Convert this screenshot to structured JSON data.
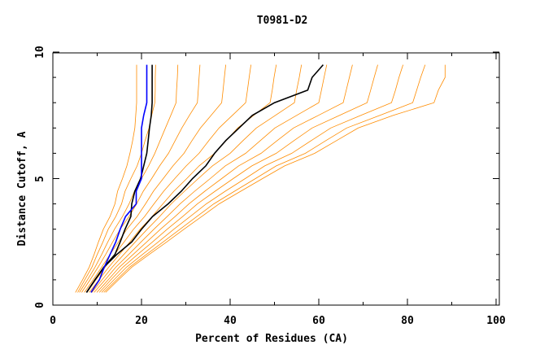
{
  "chart_data": {
    "type": "line",
    "title": "T0981-D2",
    "xlabel": "Percent of Residues (CA)",
    "ylabel": "Distance Cutoff, A",
    "xlim": [
      0,
      100
    ],
    "ylim": [
      0,
      10
    ],
    "xticks": [
      "0",
      "20",
      "40",
      "60",
      "80",
      "100"
    ],
    "yticks": [
      "0",
      "5",
      "10"
    ],
    "grid": false,
    "legend": "none",
    "colors": {
      "models": "#ff8c00",
      "highlight_black": "#000000",
      "highlight_blue": "#0000ff"
    },
    "y": [
      0.5,
      1,
      1.5,
      2,
      2.5,
      3,
      3.5,
      4,
      4.5,
      5,
      5.5,
      6,
      6.5,
      7,
      7.5,
      8,
      8.5,
      9,
      9.5
    ],
    "series": [
      {
        "color": "#ff8c00",
        "x": [
          5.1,
          6.7,
          8.2,
          9.3,
          10.3,
          11.4,
          12.9,
          14,
          14.6,
          15.7,
          16.7,
          17.4,
          18,
          18.5,
          18.7,
          18.9,
          18.9,
          18.9,
          18.9
        ]
      },
      {
        "color": "#ff8c00",
        "x": [
          5.6,
          7.2,
          8.8,
          10,
          11.3,
          12.5,
          14.2,
          15.5,
          16.3,
          17.6,
          19,
          20,
          20.8,
          21.7,
          22.3,
          23,
          23.1,
          23.1,
          23.2
        ]
      },
      {
        "color": "#ff8c00",
        "x": [
          6,
          7.8,
          9.5,
          11,
          12.4,
          13.9,
          15.7,
          17.2,
          18.4,
          20,
          21.6,
          23,
          24.2,
          25.4,
          26.6,
          27.8,
          27.9,
          28.1,
          28.2
        ]
      },
      {
        "color": "#ff8c00",
        "x": [
          6.5,
          8.4,
          10.2,
          11.9,
          13.5,
          15.2,
          17.2,
          18.9,
          20.4,
          22.3,
          24.1,
          26.1,
          27.6,
          29.1,
          30.8,
          32.6,
          32.8,
          33,
          33.2
        ]
      },
      {
        "color": "#ff8c00",
        "x": [
          7.1,
          9.1,
          11,
          12.9,
          14.8,
          16.7,
          19,
          20.9,
          22.7,
          24.9,
          27.1,
          29.6,
          31.4,
          33.3,
          35.7,
          38.1,
          38.4,
          38.7,
          39
        ]
      },
      {
        "color": "#ff8c00",
        "x": [
          7.7,
          9.7,
          11.8,
          13.9,
          16.1,
          18.2,
          20.7,
          22.8,
          25,
          27.5,
          30.1,
          33,
          35.2,
          37.5,
          40.5,
          43.5,
          43.9,
          44.3,
          44.7
        ]
      },
      {
        "color": "#ff8c00",
        "x": [
          8.2,
          10.4,
          12.6,
          15,
          17.4,
          19.7,
          22.4,
          24.8,
          27.3,
          30.2,
          33,
          36.5,
          39.1,
          41.7,
          45.3,
          49,
          49.5,
          49.9,
          50.4
        ]
      },
      {
        "color": "#ff8c00",
        "x": [
          8.8,
          11.1,
          13.4,
          16,
          18.6,
          21.3,
          24.1,
          26.7,
          29.7,
          32.8,
          36,
          40,
          42.9,
          45.9,
          50.2,
          54.5,
          55,
          55.6,
          56.1
        ]
      },
      {
        "color": "#ff8c00",
        "x": [
          9.3,
          11.8,
          14.2,
          17.1,
          19.9,
          22.8,
          25.8,
          28.7,
          32,
          35.5,
          38.9,
          43.5,
          46.8,
          50.1,
          55,
          60,
          60.6,
          61.2,
          61.8
        ]
      },
      {
        "color": "#ff8c00",
        "x": [
          9.9,
          12.5,
          15,
          18.1,
          21.2,
          24.3,
          27.6,
          30.7,
          34.3,
          38.1,
          41.9,
          47,
          50.6,
          54.3,
          59.9,
          65.5,
          66.2,
          66.9,
          67.6
        ]
      },
      {
        "color": "#ff8c00",
        "x": [
          10.5,
          13.1,
          15.8,
          19.1,
          22.5,
          25.8,
          29.3,
          32.6,
          36.6,
          40.7,
          44.9,
          50.4,
          54.4,
          58.5,
          64.7,
          70.9,
          71.7,
          72.5,
          73.3
        ]
      },
      {
        "color": "#ff8c00",
        "x": [
          11,
          13.8,
          16.6,
          20.2,
          23.8,
          27.3,
          31,
          34.6,
          38.9,
          43.4,
          47.8,
          53.9,
          58.3,
          62.7,
          69.5,
          76.4,
          77.3,
          78.1,
          79
        ]
      },
      {
        "color": "#ff8c00",
        "x": [
          11.5,
          14.4,
          17.3,
          21.1,
          24.9,
          28.7,
          32.5,
          36.3,
          41,
          45.7,
          50.4,
          57,
          61.6,
          66.3,
          73.8,
          81.2,
          82.1,
          83,
          84
        ]
      },
      {
        "color": "#ff8c00",
        "x": [
          11.9,
          14.8,
          17.8,
          21.7,
          25.7,
          29.6,
          33.6,
          37.5,
          42.4,
          47.3,
          52.3,
          59.1,
          64,
          68.9,
          76.8,
          86,
          87,
          88.5,
          88.5
        ]
      },
      {
        "color": "#000000",
        "x": [
          7.6,
          9.5,
          11.5,
          14.4,
          17.8,
          20,
          22.5,
          26,
          29,
          31.5,
          34.5,
          36.5,
          39,
          42,
          45,
          50,
          57.5,
          58.5,
          61
        ]
      },
      {
        "color": "#000000",
        "x": [
          7.6,
          9.5,
          11.5,
          14,
          15.2,
          16.3,
          17.6,
          17.8,
          18.5,
          19.8,
          20.5,
          21.2,
          21.5,
          21.8,
          22.2,
          22.4,
          22.4,
          22.4,
          22.4
        ]
      },
      {
        "color": "#0000ff",
        "x": [
          8.6,
          10.5,
          11.6,
          12.9,
          14.2,
          15.2,
          16.4,
          18.8,
          18.8,
          20,
          20,
          20,
          20,
          20,
          20.5,
          21.2,
          21.2,
          21.2,
          21.2
        ]
      }
    ]
  }
}
